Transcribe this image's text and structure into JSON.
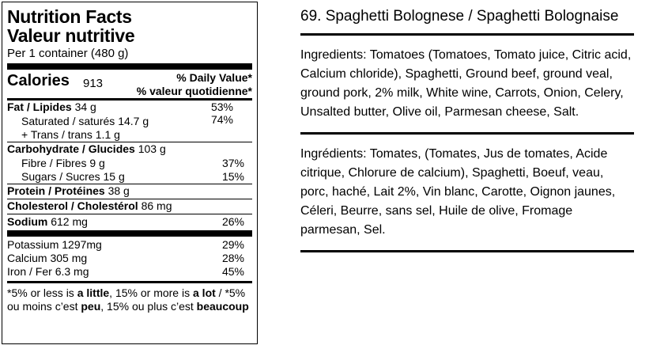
{
  "nutrition": {
    "title_en": "Nutrition Facts",
    "title_fr": "Valeur nutritive",
    "per": "Per",
    "serving": "1 container (480 g)",
    "calories_label": "Calories",
    "calories_value": "913",
    "dv_en": "% Daily Value",
    "dv_fr": "% valeur quotidienne",
    "dv_star": "*",
    "fat": {
      "label": "Fat / Lipides",
      "amount": "34 g",
      "pct": "53%"
    },
    "saturated": {
      "label": "Saturated / saturés",
      "amount": "14.7 g",
      "pct": "74%"
    },
    "trans": {
      "label": "+ Trans / trans",
      "amount": "1.1 g"
    },
    "carb": {
      "label": "Carbohydrate / Glucides",
      "amount": "103 g"
    },
    "fibre": {
      "label": "Fibre / Fibres",
      "amount": "9 g",
      "pct": "37%"
    },
    "sugars": {
      "label": "Sugars / Sucres",
      "amount": "15 g",
      "pct": "15%"
    },
    "protein": {
      "label": "Protein / Protéines",
      "amount": "38 g"
    },
    "cholesterol": {
      "label": "Cholesterol / Cholestérol",
      "amount": "86 mg"
    },
    "sodium": {
      "label": "Sodium",
      "amount": "612 mg",
      "pct": "26%"
    },
    "potassium": {
      "label": "Potassium",
      "amount": "1297mg",
      "pct": "29%"
    },
    "calcium": {
      "label": "Calcium",
      "amount": "305 mg",
      "pct": "28%"
    },
    "iron": {
      "label": "Iron / Fer",
      "amount": "6.3 mg",
      "pct": "45%"
    },
    "footnote": {
      "p1": "*5% or less is ",
      "b1": "a little",
      "p2": ", 15% or more is ",
      "b2": "a lot",
      "p3": " / *5% ou moins c’est ",
      "b3": "peu",
      "p4": ", 15% ou plus c’est ",
      "b4": "beaucoup"
    }
  },
  "recipe": {
    "title": "69. Spaghetti Bolognese / Spaghetti Bolognaise",
    "ingredients_en": "Ingredients: Tomatoes (Tomatoes, Tomato juice, Citric acid, Calcium chloride), Spaghetti, Ground beef, ground veal, ground pork, 2% milk, White wine, Carrots, Onion, Celery, Unsalted butter, Olive oil, Parmesan cheese, Salt.",
    "ingredients_fr": "Ingrédients: Tomates, (Tomates, Jus de tomates, Acide citrique, Chlorure de calcium), Spaghetti, Boeuf, veau, porc, haché, Lait 2%, Vin blanc, Carotte, Oignon jaunes, Céleri, Beurre, sans sel, Huile de olive, Fromage parmesan, Sel."
  }
}
